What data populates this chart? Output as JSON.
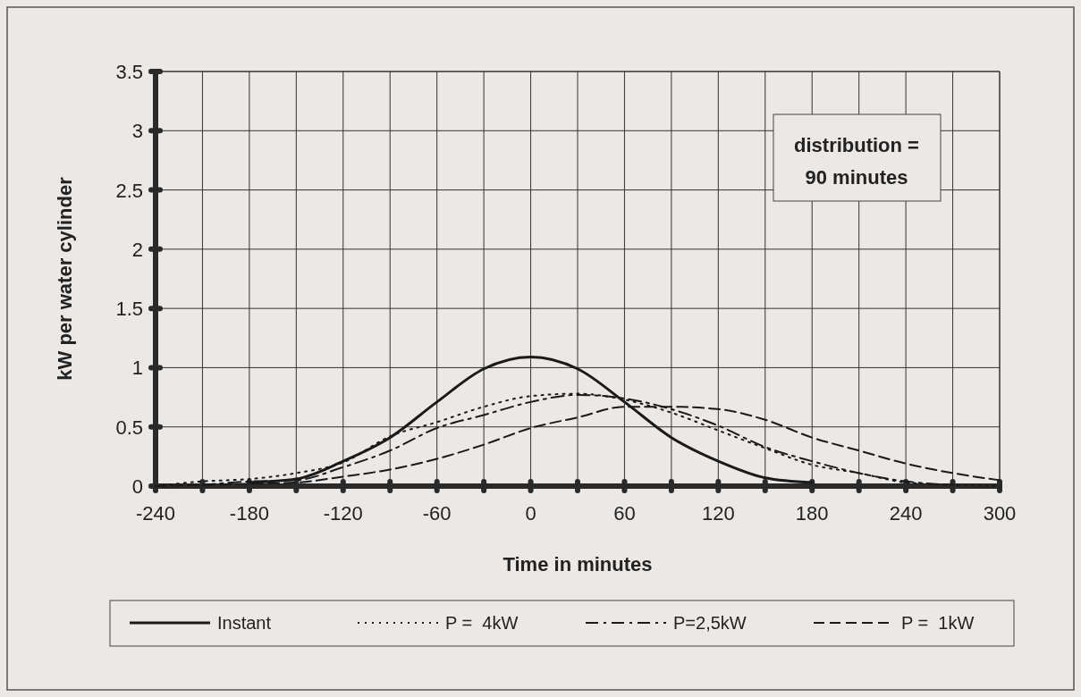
{
  "chart_data": {
    "type": "line",
    "xlabel": "Time in minutes",
    "ylabel": "kW per water cylinder",
    "annotations": [
      "distribution = 90 minutes"
    ],
    "x": [
      -240,
      -210,
      -180,
      -150,
      -120,
      -90,
      -60,
      -30,
      0,
      30,
      60,
      90,
      120,
      150,
      180,
      210,
      240,
      270,
      300
    ],
    "series": [
      {
        "name": "Instant",
        "color": "#1a1a1a",
        "line_style": "solid",
        "values": [
          null,
          null,
          0.03,
          0.06,
          0.21,
          0.41,
          0.71,
          0.99,
          1.09,
          0.99,
          0.71,
          0.41,
          0.21,
          0.07,
          0.03,
          null,
          null,
          null,
          null
        ]
      },
      {
        "name": "P =  4kW",
        "color": "#1a1a1a",
        "line_style": "dotted",
        "values": [
          0,
          0.04,
          0.06,
          0.11,
          0.2,
          0.42,
          0.54,
          0.67,
          0.76,
          0.78,
          0.73,
          0.62,
          0.47,
          0.32,
          0.18,
          0.11,
          0.03,
          0.01,
          0
        ]
      },
      {
        "name": "P=2,5kW",
        "color": "#1a1a1a",
        "line_style": "dashdot",
        "values": [
          null,
          0.01,
          0.04,
          0.05,
          0.16,
          0.3,
          0.49,
          0.6,
          0.71,
          0.77,
          0.74,
          0.65,
          0.51,
          0.33,
          0.21,
          0.11,
          0.04,
          0.01,
          null
        ]
      },
      {
        "name": "P =  1kW",
        "color": "#1a1a1a",
        "line_style": "dashed",
        "values": [
          0,
          0.01,
          0.02,
          0.03,
          0.08,
          0.14,
          0.23,
          0.35,
          0.49,
          0.58,
          0.67,
          0.67,
          0.65,
          0.56,
          0.41,
          0.3,
          0.19,
          0.11,
          0.05
        ]
      }
    ],
    "xlim": [
      -240,
      300
    ],
    "xticks": [
      -240,
      {
        "value": -210,
        "label": null
      },
      -180,
      {
        "value": -150,
        "label": null
      },
      -120,
      {
        "value": -90,
        "label": null
      },
      -60,
      {
        "value": -30,
        "label": null
      },
      0,
      {
        "value": 30,
        "label": null
      },
      60,
      {
        "value": 90,
        "label": null
      },
      120,
      {
        "value": 150,
        "label": null
      },
      180,
      {
        "value": 210,
        "label": null
      },
      240,
      {
        "value": 270,
        "label": null
      },
      300
    ],
    "ylim": [
      0,
      3.5
    ],
    "yticks": [
      0,
      0.5,
      1,
      1.5,
      2,
      2.5,
      3,
      3.5
    ],
    "grid": true,
    "legend": "bottom",
    "marker": "none"
  }
}
